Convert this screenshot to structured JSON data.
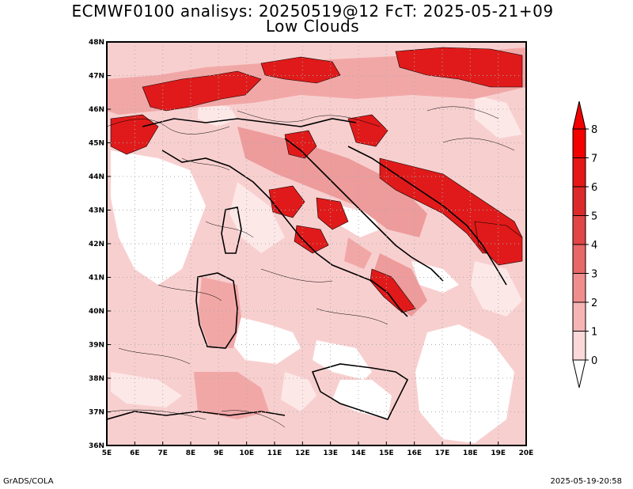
{
  "title": {
    "line1": "ECMWF0100 analisys: 20250519@12 FcT: 2025-05-21+09",
    "line2": "Low Clouds"
  },
  "map": {
    "lon_range": [
      5,
      20
    ],
    "lat_range": [
      36,
      48
    ],
    "lon_ticks": [
      "5E",
      "6E",
      "7E",
      "8E",
      "9E",
      "10E",
      "11E",
      "12E",
      "13E",
      "14E",
      "15E",
      "16E",
      "17E",
      "18E",
      "19E",
      "20E"
    ],
    "lat_ticks": [
      "36N",
      "37N",
      "38N",
      "39N",
      "40N",
      "41N",
      "42N",
      "43N",
      "44N",
      "45N",
      "46N",
      "47N",
      "48N"
    ],
    "grid": "dotted"
  },
  "colorbar": {
    "labels": [
      "0",
      "1",
      "2",
      "3",
      "4",
      "5",
      "6",
      "7",
      "8"
    ],
    "colors": [
      "#ffffff",
      "#fbd9d9",
      "#f6b5b5",
      "#f08e8e",
      "#e86767",
      "#e24545",
      "#dc2a2a",
      "#e61717",
      "#f30000"
    ],
    "extends": "both"
  },
  "footer": {
    "left": "GrADS/COLA",
    "right": "2025-05-19-20:58"
  }
}
